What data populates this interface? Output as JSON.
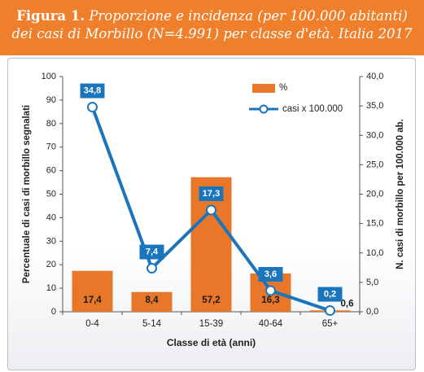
{
  "header": {
    "label": "Figura 1.",
    "text": "Proporzione e incidenza (per 100.000 abitanti) dei casi di Morbillo (N=4.991) per classe d'età. Italia 2017"
  },
  "colors": {
    "header_bg": "#f07f2b",
    "bar_fill": "#e8772a",
    "line": "#1b75bc",
    "label_box": "#1b75bc"
  },
  "chart_data": {
    "type": "bar",
    "categories": [
      "0-4",
      "5-14",
      "15-39",
      "40-64",
      "65+"
    ],
    "series": [
      {
        "name": "%",
        "type": "bar",
        "axis": "left",
        "values": [
          17.4,
          8.4,
          57.2,
          16.3,
          0.6
        ],
        "labels": [
          "17,4",
          "8,4",
          "57,2",
          "16,3",
          "0,6"
        ]
      },
      {
        "name": "casi x 100.000",
        "type": "line",
        "axis": "right",
        "values": [
          34.8,
          7.4,
          17.3,
          3.6,
          0.2
        ],
        "labels": [
          "34,8",
          "7,4",
          "17,3",
          "3,6",
          "0,2"
        ]
      }
    ],
    "xlabel": "Classe di età (anni)",
    "ylabel": "Percentuale di casi di morbillo segnalati",
    "y2label": "N. casi di morbillo per 100.000 ab.",
    "ylim": [
      0,
      100
    ],
    "y2lim": [
      0,
      40
    ],
    "yticks": [
      "0",
      "10",
      "20",
      "30",
      "40",
      "50",
      "60",
      "70",
      "80",
      "90",
      "100"
    ],
    "y2ticks": [
      "0,0",
      "5,0",
      "10,0",
      "15,0",
      "20,0",
      "25,0",
      "30,0",
      "35,0",
      "40,0"
    ],
    "legend_position": "top-right",
    "grid": false
  }
}
